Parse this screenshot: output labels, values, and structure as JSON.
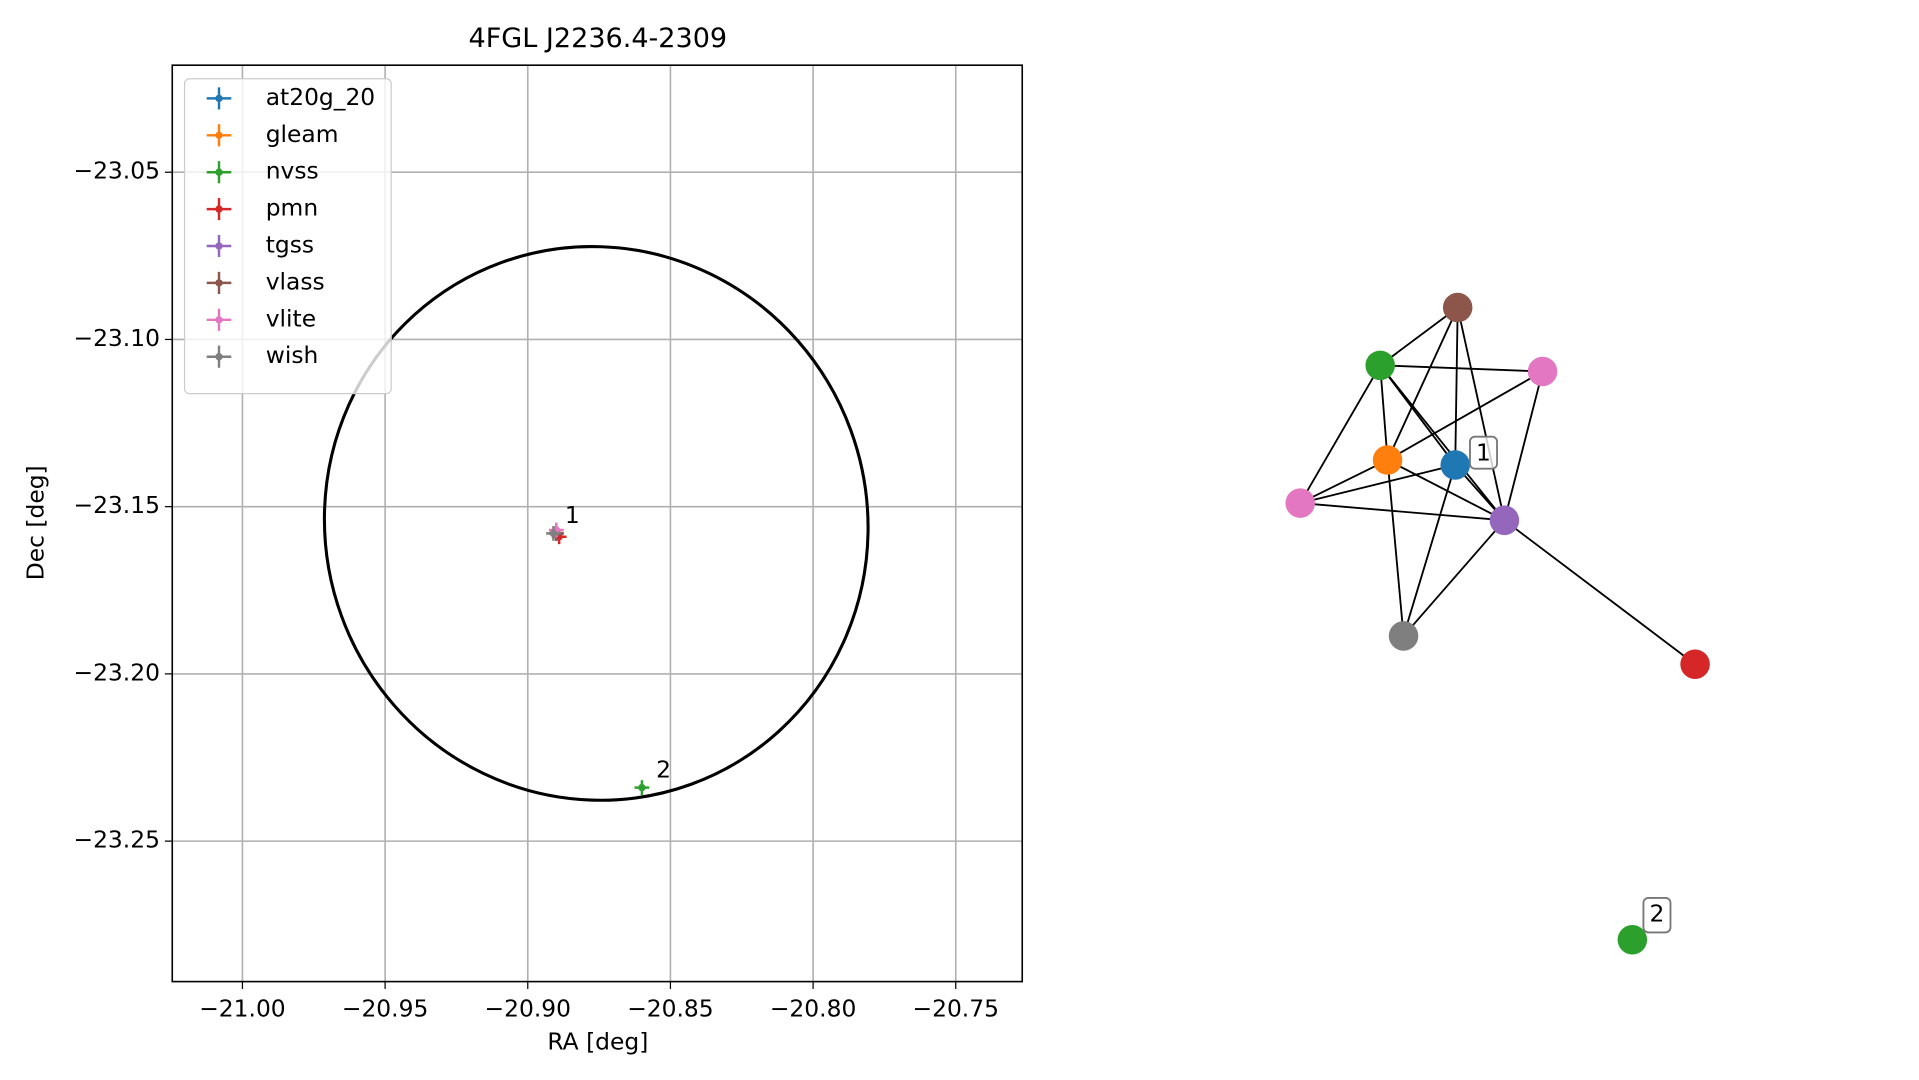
{
  "chart_data": [
    {
      "type": "scatter",
      "title": "4FGL J2236.4-2309",
      "x_label": "RA [deg]",
      "y_label": "Dec [deg]",
      "xlim": [
        -21.0246,
        -20.7267
      ],
      "ylim": [
        -23.292,
        -23.018
      ],
      "xticks": [
        {
          "value": -21.0,
          "label": "−21.00"
        },
        {
          "value": -20.95,
          "label": "−20.95"
        },
        {
          "value": -20.9,
          "label": "−20.90"
        },
        {
          "value": -20.85,
          "label": "−20.85"
        },
        {
          "value": -20.8,
          "label": "−20.80"
        },
        {
          "value": -20.75,
          "label": "−20.75"
        }
      ],
      "yticks": [
        {
          "value": -23.05,
          "label": "−23.05"
        },
        {
          "value": -23.1,
          "label": "−23.10"
        },
        {
          "value": -23.15,
          "label": "−23.15"
        },
        {
          "value": -23.2,
          "label": "−23.20"
        },
        {
          "value": -23.25,
          "label": "−23.25"
        }
      ],
      "grid": true,
      "legend": "upper-left",
      "series": [
        {
          "name": "at20g_20",
          "color": "#1f77b4",
          "x": [
            -20.89
          ],
          "values": [
            -23.158
          ]
        },
        {
          "name": "gleam",
          "color": "#ff7f0e",
          "x": [
            -20.89
          ],
          "values": [
            -23.157
          ]
        },
        {
          "name": "nvss",
          "color": "#2ca02c",
          "x": [
            -20.86
          ],
          "values": [
            -23.234
          ]
        },
        {
          "name": "pmn",
          "color": "#d62728",
          "x": [
            -20.889
          ],
          "values": [
            -23.159
          ]
        },
        {
          "name": "tgss",
          "color": "#9467bd",
          "x": [
            -20.89
          ],
          "values": [
            -23.158
          ]
        },
        {
          "name": "vlass",
          "color": "#8c564b",
          "x": [
            -20.89
          ],
          "values": [
            -23.158
          ]
        },
        {
          "name": "vlite",
          "color": "#e377c2",
          "x": [
            -20.89
          ],
          "values": [
            -23.157
          ]
        },
        {
          "name": "wish",
          "color": "#7f7f7f",
          "x": [
            -20.891
          ],
          "values": [
            -23.158
          ]
        }
      ],
      "annotations": [
        {
          "text": "1",
          "x": -20.887,
          "y": -23.153
        },
        {
          "text": "2",
          "x": -20.855,
          "y": -23.229
        }
      ],
      "ellipse": {
        "x": -20.876,
        "y": -23.155,
        "rx": 0.095,
        "ry": 0.083,
        "angle": 20,
        "color": "#000000"
      }
    },
    {
      "type": "network",
      "labels": [
        "1",
        "2"
      ]
    }
  ]
}
